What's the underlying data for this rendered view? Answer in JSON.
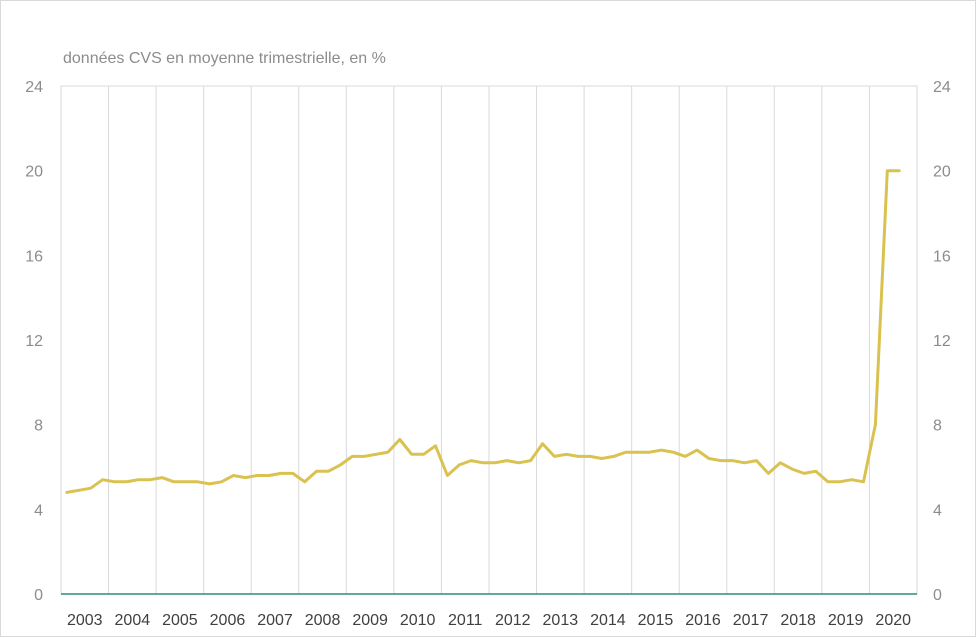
{
  "chart_data": {
    "type": "line",
    "subtitle": "données CVS en moyenne trimestrielle, en %",
    "title": "",
    "xlabel": "",
    "ylabel": "",
    "ylim": [
      0,
      24
    ],
    "y_ticks": [
      "0",
      "4",
      "8",
      "12",
      "16",
      "20",
      "24"
    ],
    "y_ticks_right": [
      "0",
      "4",
      "8",
      "12",
      "16",
      "20",
      "24"
    ],
    "x_range": [
      2002.5,
      2020.5
    ],
    "x_tick_labels": [
      "2003",
      "2004",
      "2005",
      "2006",
      "2007",
      "2008",
      "2009",
      "2010",
      "2011",
      "2012",
      "2013",
      "2014",
      "2015",
      "2016",
      "2017",
      "2018",
      "2019",
      "2020"
    ],
    "grid": "vertical",
    "legend": "none",
    "colors": {
      "line": "#d9c24f",
      "grid": "#d9d9d9",
      "zero_line": "#2e8b7a"
    },
    "series": [
      {
        "x": [
          2002.625,
          2002.875,
          2003.125,
          2003.375,
          2003.625,
          2003.875,
          2004.125,
          2004.375,
          2004.625,
          2004.875,
          2005.125,
          2005.375,
          2005.625,
          2005.875,
          2006.125,
          2006.375,
          2006.625,
          2006.875,
          2007.125,
          2007.375,
          2007.625,
          2007.875,
          2008.125,
          2008.375,
          2008.625,
          2008.875,
          2009.125,
          2009.375,
          2009.625,
          2009.875,
          2010.125,
          2010.375,
          2010.625,
          2010.875,
          2011.125,
          2011.375,
          2011.625,
          2011.875,
          2012.125,
          2012.375,
          2012.625,
          2012.875,
          2013.125,
          2013.375,
          2013.625,
          2013.875,
          2014.125,
          2014.375,
          2014.625,
          2014.875,
          2015.125,
          2015.375,
          2015.625,
          2015.875,
          2016.125,
          2016.375,
          2016.625,
          2016.875,
          2017.125,
          2017.375,
          2017.625,
          2017.875,
          2018.125,
          2018.375,
          2018.625,
          2018.875,
          2019.125,
          2019.375,
          2019.625,
          2019.875,
          2020.125
        ],
        "y": [
          4.8,
          4.9,
          5.0,
          5.4,
          5.3,
          5.3,
          5.4,
          5.4,
          5.5,
          5.3,
          5.3,
          5.3,
          5.2,
          5.3,
          5.6,
          5.5,
          5.6,
          5.6,
          5.7,
          5.7,
          5.3,
          5.8,
          5.8,
          6.1,
          6.5,
          6.5,
          6.6,
          6.7,
          7.3,
          6.6,
          6.6,
          7.0,
          5.6,
          6.1,
          6.3,
          6.2,
          6.2,
          6.3,
          6.2,
          6.3,
          7.1,
          6.5,
          6.6,
          6.5,
          6.5,
          6.4,
          6.5,
          6.7,
          6.7,
          6.7,
          6.8,
          6.7,
          6.5,
          6.8,
          6.4,
          6.3,
          6.3,
          6.2,
          6.3,
          5.7,
          6.2,
          5.9,
          5.7,
          5.8,
          5.3,
          5.3,
          5.4,
          5.3,
          8.0,
          20.0,
          20.0
        ]
      }
    ]
  }
}
